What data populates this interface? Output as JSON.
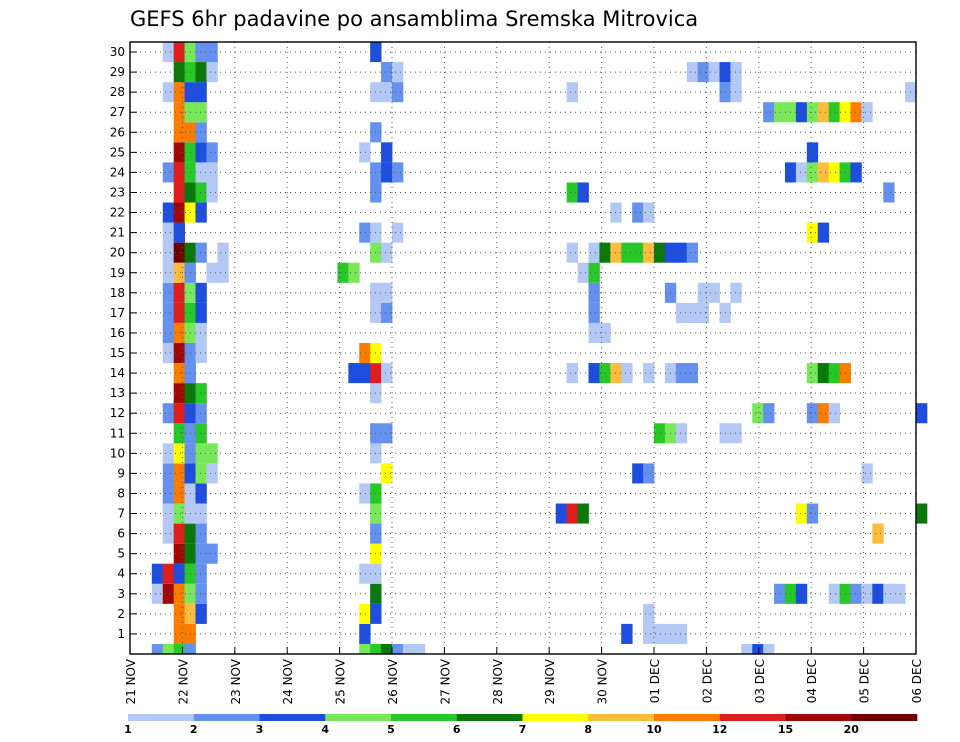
{
  "chart_data": {
    "type": "heatmap",
    "title": "GEFS 6hr padavine po ansamblima Sremska Mitrovica",
    "x_ticks": [
      "21 NOV",
      "22 NOV",
      "23 NOV",
      "24 NOV",
      "25 NOV",
      "26 NOV",
      "27 NOV",
      "28 NOV",
      "29 NOV",
      "30 NOV",
      "01 DEC",
      "02 DEC",
      "03 DEC",
      "04 DEC",
      "05 DEC",
      "06 DEC"
    ],
    "x_range": [
      "21 NOV 00Z",
      "06 DEC 00Z"
    ],
    "steps_per_day": 4,
    "y_ticks": [
      1,
      2,
      3,
      4,
      5,
      6,
      7,
      8,
      9,
      10,
      11,
      12,
      13,
      14,
      15,
      16,
      17,
      18,
      19,
      20,
      21,
      22,
      23,
      24,
      25,
      26,
      27,
      28,
      29,
      30
    ],
    "grid": true,
    "colorbar": {
      "labels": [
        "1",
        "2",
        "3",
        "4",
        "5",
        "6",
        "7",
        "8",
        "10",
        "12",
        "15",
        "20"
      ],
      "colors": [
        "#b4c8f5",
        "#6490ee",
        "#1e4ee0",
        "#78e85a",
        "#28c828",
        "#0a780a",
        "#ffff00",
        "#fcbc3c",
        "#fa7d00",
        "#e01e1e",
        "#a00808",
        "#6e0000"
      ]
    },
    "rows": {
      "0": [
        [
          2,
          2
        ],
        [
          3,
          4
        ],
        [
          4,
          5
        ],
        [
          5,
          2
        ],
        [
          21,
          4
        ],
        [
          22,
          5
        ],
        [
          23,
          6
        ],
        [
          24,
          2
        ],
        [
          25,
          1
        ],
        [
          26,
          1
        ],
        [
          56,
          1
        ],
        [
          57,
          3
        ],
        [
          58,
          1
        ]
      ],
      "1": [
        [
          4,
          9
        ],
        [
          5,
          9
        ],
        [
          21,
          3
        ],
        [
          45,
          3
        ],
        [
          47,
          1
        ],
        [
          48,
          1
        ],
        [
          49,
          1
        ],
        [
          50,
          1
        ]
      ],
      "2": [
        [
          4,
          9
        ],
        [
          5,
          8
        ],
        [
          6,
          3
        ],
        [
          21,
          7
        ],
        [
          22,
          3
        ],
        [
          47,
          1
        ]
      ],
      "3": [
        [
          2,
          1
        ],
        [
          3,
          11
        ],
        [
          4,
          9
        ],
        [
          5,
          4
        ],
        [
          6,
          2
        ],
        [
          22,
          6
        ],
        [
          59,
          2
        ],
        [
          60,
          5
        ],
        [
          61,
          3
        ],
        [
          64,
          1
        ],
        [
          65,
          5
        ],
        [
          66,
          2
        ],
        [
          67,
          1
        ],
        [
          68,
          3
        ],
        [
          69,
          1
        ],
        [
          70,
          1
        ]
      ],
      "4": [
        [
          2,
          3
        ],
        [
          3,
          10
        ],
        [
          4,
          3
        ],
        [
          5,
          5
        ],
        [
          6,
          2
        ],
        [
          21,
          1
        ],
        [
          22,
          1
        ]
      ],
      "5": [
        [
          4,
          11
        ],
        [
          5,
          6
        ],
        [
          6,
          2
        ],
        [
          7,
          2
        ],
        [
          22,
          7
        ]
      ],
      "6": [
        [
          3,
          1
        ],
        [
          4,
          10
        ],
        [
          5,
          6
        ],
        [
          6,
          2
        ],
        [
          22,
          2
        ],
        [
          68,
          8
        ]
      ],
      "7": [
        [
          3,
          1
        ],
        [
          4,
          4
        ],
        [
          5,
          1
        ],
        [
          6,
          1
        ],
        [
          22,
          4
        ],
        [
          39,
          3
        ],
        [
          40,
          10
        ],
        [
          41,
          6
        ],
        [
          61,
          7
        ],
        [
          62,
          2
        ],
        [
          72,
          6
        ]
      ],
      "8": [
        [
          3,
          2
        ],
        [
          4,
          9
        ],
        [
          5,
          1
        ],
        [
          6,
          3
        ],
        [
          21,
          1
        ],
        [
          22,
          5
        ]
      ],
      "9": [
        [
          3,
          2
        ],
        [
          4,
          9
        ],
        [
          5,
          3
        ],
        [
          6,
          4
        ],
        [
          7,
          1
        ],
        [
          23,
          7
        ],
        [
          46,
          3
        ],
        [
          47,
          2
        ],
        [
          67,
          1
        ]
      ],
      "10": [
        [
          3,
          1
        ],
        [
          4,
          7
        ],
        [
          5,
          2
        ],
        [
          6,
          4
        ],
        [
          7,
          4
        ],
        [
          22,
          1
        ]
      ],
      "11": [
        [
          4,
          5
        ],
        [
          5,
          2
        ],
        [
          6,
          5
        ],
        [
          22,
          2
        ],
        [
          23,
          2
        ],
        [
          48,
          5
        ],
        [
          49,
          4
        ],
        [
          50,
          1
        ],
        [
          54,
          1
        ],
        [
          55,
          1
        ]
      ],
      "12": [
        [
          3,
          2
        ],
        [
          4,
          10
        ],
        [
          5,
          3
        ],
        [
          6,
          2
        ],
        [
          57,
          4
        ],
        [
          58,
          2
        ],
        [
          62,
          2
        ],
        [
          63,
          9
        ],
        [
          64,
          1
        ],
        [
          72,
          3
        ]
      ],
      "13": [
        [
          4,
          11
        ],
        [
          5,
          6
        ],
        [
          6,
          5
        ],
        [
          22,
          1
        ]
      ],
      "14": [
        [
          4,
          9
        ],
        [
          5,
          2
        ],
        [
          20,
          3
        ],
        [
          21,
          3
        ],
        [
          22,
          10
        ],
        [
          23,
          1
        ],
        [
          40,
          1
        ],
        [
          42,
          3
        ],
        [
          43,
          5
        ],
        [
          44,
          8
        ],
        [
          45,
          1
        ],
        [
          47,
          1
        ],
        [
          49,
          1
        ],
        [
          50,
          2
        ],
        [
          51,
          2
        ],
        [
          62,
          4
        ],
        [
          63,
          6
        ],
        [
          64,
          5
        ],
        [
          65,
          9
        ]
      ],
      "15": [
        [
          3,
          1
        ],
        [
          4,
          11
        ],
        [
          5,
          2
        ],
        [
          6,
          1
        ],
        [
          21,
          9
        ],
        [
          22,
          7
        ]
      ],
      "16": [
        [
          3,
          2
        ],
        [
          4,
          9
        ],
        [
          5,
          4
        ],
        [
          6,
          1
        ],
        [
          42,
          1
        ],
        [
          43,
          1
        ]
      ],
      "17": [
        [
          3,
          2
        ],
        [
          4,
          10
        ],
        [
          5,
          5
        ],
        [
          6,
          3
        ],
        [
          22,
          1
        ],
        [
          23,
          2
        ],
        [
          42,
          2
        ],
        [
          50,
          1
        ],
        [
          51,
          1
        ],
        [
          52,
          1
        ],
        [
          54,
          1
        ]
      ],
      "18": [
        [
          3,
          2
        ],
        [
          4,
          10
        ],
        [
          5,
          4
        ],
        [
          6,
          3
        ],
        [
          22,
          1
        ],
        [
          23,
          1
        ],
        [
          42,
          2
        ],
        [
          49,
          2
        ],
        [
          52,
          1
        ],
        [
          53,
          1
        ],
        [
          55,
          1
        ]
      ],
      "19": [
        [
          3,
          1
        ],
        [
          4,
          8
        ],
        [
          5,
          2
        ],
        [
          7,
          1
        ],
        [
          8,
          1
        ],
        [
          19,
          5
        ],
        [
          20,
          4
        ],
        [
          41,
          1
        ],
        [
          42,
          5
        ]
      ],
      "20": [
        [
          3,
          1
        ],
        [
          4,
          12
        ],
        [
          5,
          6
        ],
        [
          6,
          2
        ],
        [
          8,
          1
        ],
        [
          22,
          4
        ],
        [
          23,
          1
        ],
        [
          40,
          1
        ],
        [
          42,
          1
        ],
        [
          43,
          6
        ],
        [
          44,
          8
        ],
        [
          45,
          5
        ],
        [
          46,
          5
        ],
        [
          47,
          8
        ],
        [
          48,
          6
        ],
        [
          49,
          3
        ],
        [
          50,
          3
        ],
        [
          51,
          2
        ]
      ],
      "21": [
        [
          3,
          1
        ],
        [
          4,
          3
        ],
        [
          21,
          2
        ],
        [
          22,
          1
        ],
        [
          24,
          1
        ],
        [
          62,
          7
        ],
        [
          63,
          3
        ]
      ],
      "22": [
        [
          3,
          3
        ],
        [
          4,
          11
        ],
        [
          5,
          7
        ],
        [
          6,
          3
        ],
        [
          44,
          1
        ],
        [
          46,
          2
        ],
        [
          47,
          1
        ]
      ],
      "23": [
        [
          4,
          10
        ],
        [
          5,
          6
        ],
        [
          6,
          5
        ],
        [
          7,
          1
        ],
        [
          22,
          2
        ],
        [
          40,
          5
        ],
        [
          41,
          3
        ],
        [
          69,
          2
        ]
      ],
      "24": [
        [
          3,
          2
        ],
        [
          4,
          10
        ],
        [
          5,
          5
        ],
        [
          6,
          1
        ],
        [
          7,
          1
        ],
        [
          22,
          2
        ],
        [
          23,
          3
        ],
        [
          24,
          2
        ],
        [
          60,
          3
        ],
        [
          61,
          1
        ],
        [
          62,
          4
        ],
        [
          63,
          8
        ],
        [
          64,
          7
        ],
        [
          65,
          5
        ],
        [
          66,
          3
        ]
      ],
      "25": [
        [
          4,
          11
        ],
        [
          5,
          5
        ],
        [
          6,
          3
        ],
        [
          7,
          2
        ],
        [
          21,
          1
        ],
        [
          23,
          3
        ],
        [
          62,
          3
        ]
      ],
      "26": [
        [
          4,
          9
        ],
        [
          5,
          9
        ],
        [
          6,
          2
        ],
        [
          22,
          2
        ]
      ],
      "27": [
        [
          4,
          9
        ],
        [
          5,
          4
        ],
        [
          6,
          4
        ],
        [
          58,
          2
        ],
        [
          59,
          4
        ],
        [
          60,
          4
        ],
        [
          61,
          3
        ],
        [
          62,
          4
        ],
        [
          63,
          8
        ],
        [
          64,
          5
        ],
        [
          65,
          7
        ],
        [
          66,
          9
        ],
        [
          67,
          1
        ]
      ],
      "28": [
        [
          3,
          1
        ],
        [
          4,
          9
        ],
        [
          5,
          3
        ],
        [
          6,
          3
        ],
        [
          22,
          1
        ],
        [
          23,
          1
        ],
        [
          24,
          2
        ],
        [
          40,
          1
        ],
        [
          54,
          2
        ],
        [
          55,
          1
        ],
        [
          71,
          1
        ]
      ],
      "29": [
        [
          4,
          6
        ],
        [
          5,
          5
        ],
        [
          6,
          6
        ],
        [
          7,
          1
        ],
        [
          23,
          2
        ],
        [
          24,
          1
        ],
        [
          51,
          1
        ],
        [
          52,
          2
        ],
        [
          53,
          1
        ],
        [
          54,
          3
        ],
        [
          55,
          1
        ]
      ],
      "30": [
        [
          3,
          1
        ],
        [
          4,
          10
        ],
        [
          5,
          4
        ],
        [
          6,
          2
        ],
        [
          7,
          2
        ],
        [
          22,
          3
        ]
      ]
    }
  }
}
